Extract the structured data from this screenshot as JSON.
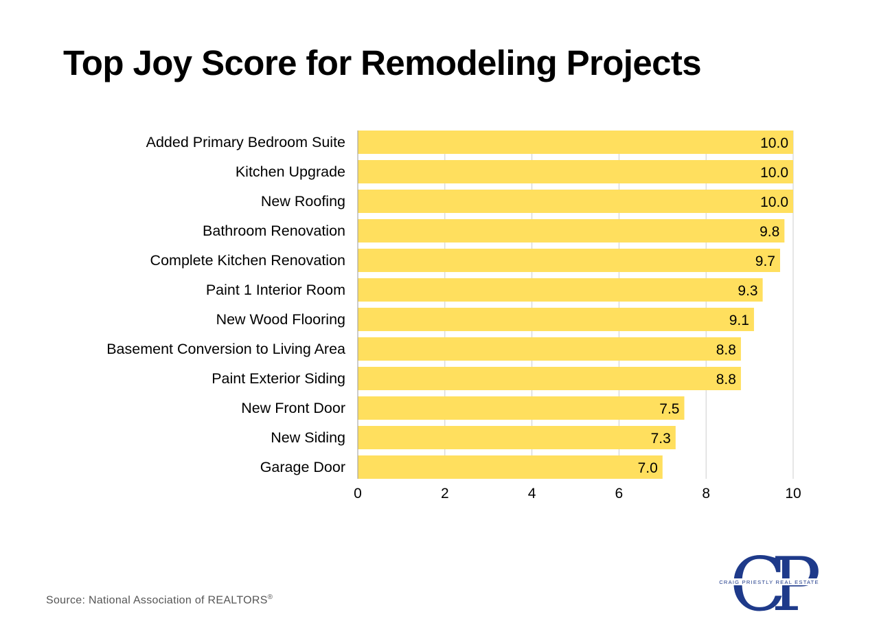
{
  "page": {
    "title": "Top Joy Score for Remodeling Projects",
    "source": "Source: National Association of REALTORS",
    "source_mark": "®",
    "logo_monogram": "CP",
    "logo_text": "CRAIG PRIESTLY REAL ESTATE"
  },
  "colors": {
    "bar": "#FFDF5E",
    "grid": "#CCCCCC",
    "text": "#000000",
    "logo": "#1E3A8A"
  },
  "chart_data": {
    "type": "bar",
    "orientation": "horizontal",
    "title": "Top Joy Score for Remodeling Projects",
    "xlabel": "",
    "ylabel": "",
    "xlim": [
      0,
      10
    ],
    "xticks": [
      0,
      2,
      4,
      6,
      8,
      10
    ],
    "grid": true,
    "categories": [
      "Added Primary Bedroom Suite",
      "Kitchen Upgrade",
      "New Roofing",
      "Bathroom Renovation",
      "Complete Kitchen Renovation",
      "Paint 1 Interior Room",
      "New Wood Flooring",
      "Basement Conversion to Living Area",
      "Paint Exterior Siding",
      "New Front Door",
      "New Siding",
      "Garage Door"
    ],
    "values": [
      10.0,
      10.0,
      10.0,
      9.8,
      9.7,
      9.3,
      9.1,
      8.8,
      8.8,
      7.5,
      7.3,
      7.0
    ],
    "value_labels": [
      "10.0",
      "10.0",
      "10.0",
      "9.8",
      "9.7",
      "9.3",
      "9.1",
      "8.8",
      "8.8",
      "7.5",
      "7.3",
      "7.0"
    ]
  }
}
